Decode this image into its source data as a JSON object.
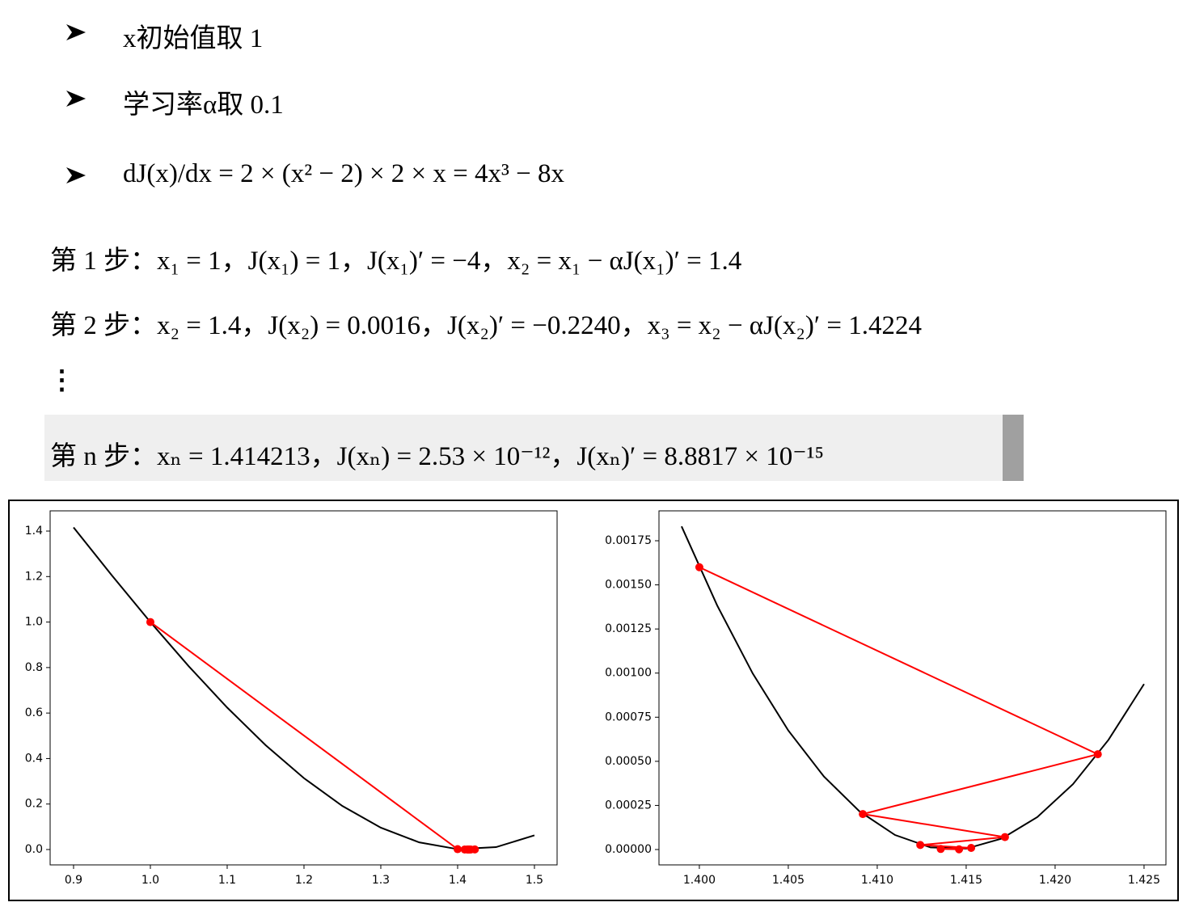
{
  "document": {
    "bullets": [
      "x初始值取 1",
      "学习率α取 0.1",
      "dJ(x)/dx = 2 × (x² − 2) × 2 × x = 4x³ − 8x"
    ],
    "steps": [
      "第 1 步：x₁ = 1，J(x₁) = 1，J(x₁)′ = −4，x₂ = x₁ − αJ(x₁)′ = 1.4",
      "第 2 步：x₂ = 1.4，J(x₂) = 0.0016，J(x₂)′ = −0.2240，x₃ = x₂ − αJ(x₂)′ = 1.4224",
      "⋮",
      "第 n 步：xₙ = 1.414213，J(xₙ) = 2.53 × 10⁻¹²，J(xₙ)′ = 8.8817 × 10⁻¹⁵"
    ]
  },
  "chart_data": [
    {
      "type": "line",
      "series": [
        {
          "color": "#000000",
          "x": [
            0.9,
            0.95,
            1.0,
            1.05,
            1.1,
            1.15,
            1.2,
            1.25,
            1.3,
            1.35,
            1.4,
            1.45,
            1.5
          ],
          "values": [
            1.4161,
            1.2045,
            1,
            0.8055,
            0.6241,
            0.459,
            0.3136,
            0.1914,
            0.0961,
            0.0315,
            0.0016,
            0.0105,
            0.0625
          ]
        },
        {
          "color": "#ff0000",
          "marker": "o",
          "x": [
            1,
            1.4,
            1.4224,
            1.40919,
            1.41718,
            1.41242,
            1.41528,
            1.41357,
            1.4146
          ],
          "values": [
            1,
            0.0016,
            0.00054,
            0.000201,
            7.06e-05,
            2.57e-05,
            9.1e-06,
            3.3e-06,
            1.2e-06
          ]
        }
      ],
      "xlim": [
        0.8695,
        1.5295
      ],
      "ylim": [
        -0.0675,
        1.4889
      ],
      "xticks": [
        0.9,
        {
          "value": 1,
          "label": "1.0"
        },
        1.1,
        1.2,
        1.3,
        1.4,
        1.5
      ],
      "yticks": [
        {
          "value": 0,
          "label": "0.0"
        },
        0.2,
        0.4,
        0.6,
        0.8,
        {
          "value": 1,
          "label": "1.0"
        },
        1.2,
        1.4
      ]
    },
    {
      "type": "line",
      "series": [
        {
          "color": "#000000",
          "x": [
            1.399,
            1.401,
            1.403,
            1.405,
            1.407,
            1.409,
            1.411,
            1.413,
            1.415,
            1.417,
            1.419,
            1.421,
            1.423,
            1.425
          ],
          "values": [
            0.0018317,
            0.0013838,
            0.000998,
            0.0006747,
            0.0004142,
            0.0002166,
            8.24e-05,
            1.18e-05,
            4.95e-06,
            6.22e-05,
            0.0001839,
            0.0003702,
            0.0006215,
            0.0009379
          ]
        },
        {
          "color": "#ff0000",
          "marker": "o",
          "x": [
            1.4,
            1.4224,
            1.40919,
            1.41718,
            1.41242,
            1.41528,
            1.41357,
            1.4146
          ],
          "values": [
            0.0016,
            0.00054,
            0.000201,
            7.06e-05,
            2.57e-05,
            9.1e-06,
            3.3e-06,
            1.2e-06
          ]
        }
      ],
      "xlim": [
        1.39773,
        1.42623
      ],
      "ylim": [
        -8.7e-05,
        0.0019195
      ],
      "xticks": [
        {
          "value": 1.4,
          "label": "1.400"
        },
        1.405,
        {
          "value": 1.41,
          "label": "1.410"
        },
        1.415,
        {
          "value": 1.42,
          "label": "1.420"
        },
        1.425
      ],
      "yticks": [
        {
          "value": 0,
          "label": "0.00000"
        },
        {
          "value": 0.00025,
          "label": "0.00025"
        },
        {
          "value": 0.0005,
          "label": "0.00050"
        },
        {
          "value": 0.00075,
          "label": "0.00075"
        },
        {
          "value": 0.001,
          "label": "0.00100"
        },
        {
          "value": 0.00125,
          "label": "0.00125"
        },
        {
          "value": 0.0015,
          "label": "0.00150"
        },
        {
          "value": 0.00175,
          "label": "0.00175"
        }
      ]
    }
  ]
}
